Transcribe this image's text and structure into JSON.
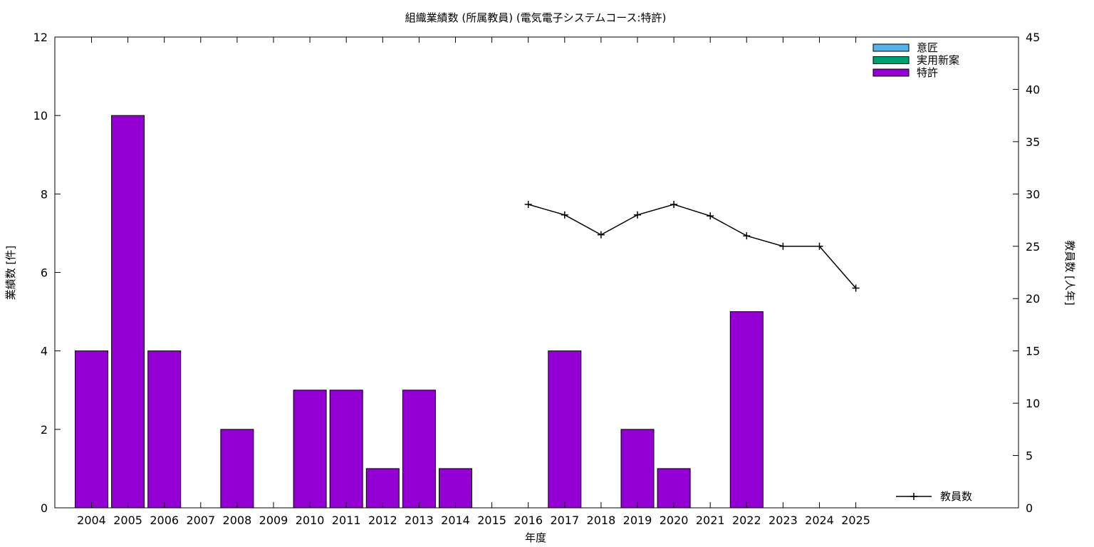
{
  "chart_data": {
    "type": "bar",
    "title": "組織業績数 (所属教員) (電気電子システムコース:特許)",
    "xlabel": "年度",
    "ylabel": "業績数 [件]",
    "y2label": "教員数 [人年]",
    "ylim": [
      0,
      12
    ],
    "y2lim": [
      0,
      45
    ],
    "yticks": [
      "0",
      "2",
      "4",
      "6",
      "8",
      "10",
      "12"
    ],
    "y2ticks": [
      "0",
      "5",
      "10",
      "15",
      "20",
      "25",
      "30",
      "35",
      "40",
      "45"
    ],
    "grid": false,
    "legend_position": "top-right",
    "categories": [
      "2004",
      "2005",
      "2006",
      "2007",
      "2008",
      "2009",
      "2010",
      "2011",
      "2012",
      "2013",
      "2014",
      "2015",
      "2016",
      "2017",
      "2018",
      "2019",
      "2020",
      "2021",
      "2022",
      "2023",
      "2024",
      "2025"
    ],
    "series": [
      {
        "name": "意匠",
        "kind": "bar",
        "color": "#56b4e9",
        "values": [
          0,
          0,
          0,
          0,
          0,
          0,
          0,
          0,
          0,
          0,
          0,
          0,
          0,
          0,
          0,
          0,
          0,
          0,
          0,
          0,
          0,
          0
        ]
      },
      {
        "name": "実用新案",
        "kind": "bar",
        "color": "#009e73",
        "values": [
          0,
          0,
          0,
          0,
          0,
          0,
          0,
          0,
          0,
          0,
          0,
          0,
          0,
          0,
          0,
          0,
          0,
          0,
          0,
          0,
          0,
          0
        ]
      },
      {
        "name": "特許",
        "kind": "bar",
        "color": "#9400d3",
        "values": [
          4,
          10,
          4,
          0,
          2,
          0,
          3,
          3,
          1,
          3,
          1,
          0,
          0,
          4,
          0,
          2,
          1,
          0,
          5,
          0,
          0,
          0
        ]
      },
      {
        "name": "教員数",
        "kind": "line",
        "axis": "y2",
        "color": "#000000",
        "x": [
          "2016",
          "2017",
          "2018",
          "2019",
          "2020",
          "2021",
          "2022",
          "2023",
          "2024",
          "2025"
        ],
        "values": [
          29,
          28,
          26.1,
          28,
          29,
          27.9,
          26,
          25,
          25,
          21
        ]
      }
    ]
  }
}
